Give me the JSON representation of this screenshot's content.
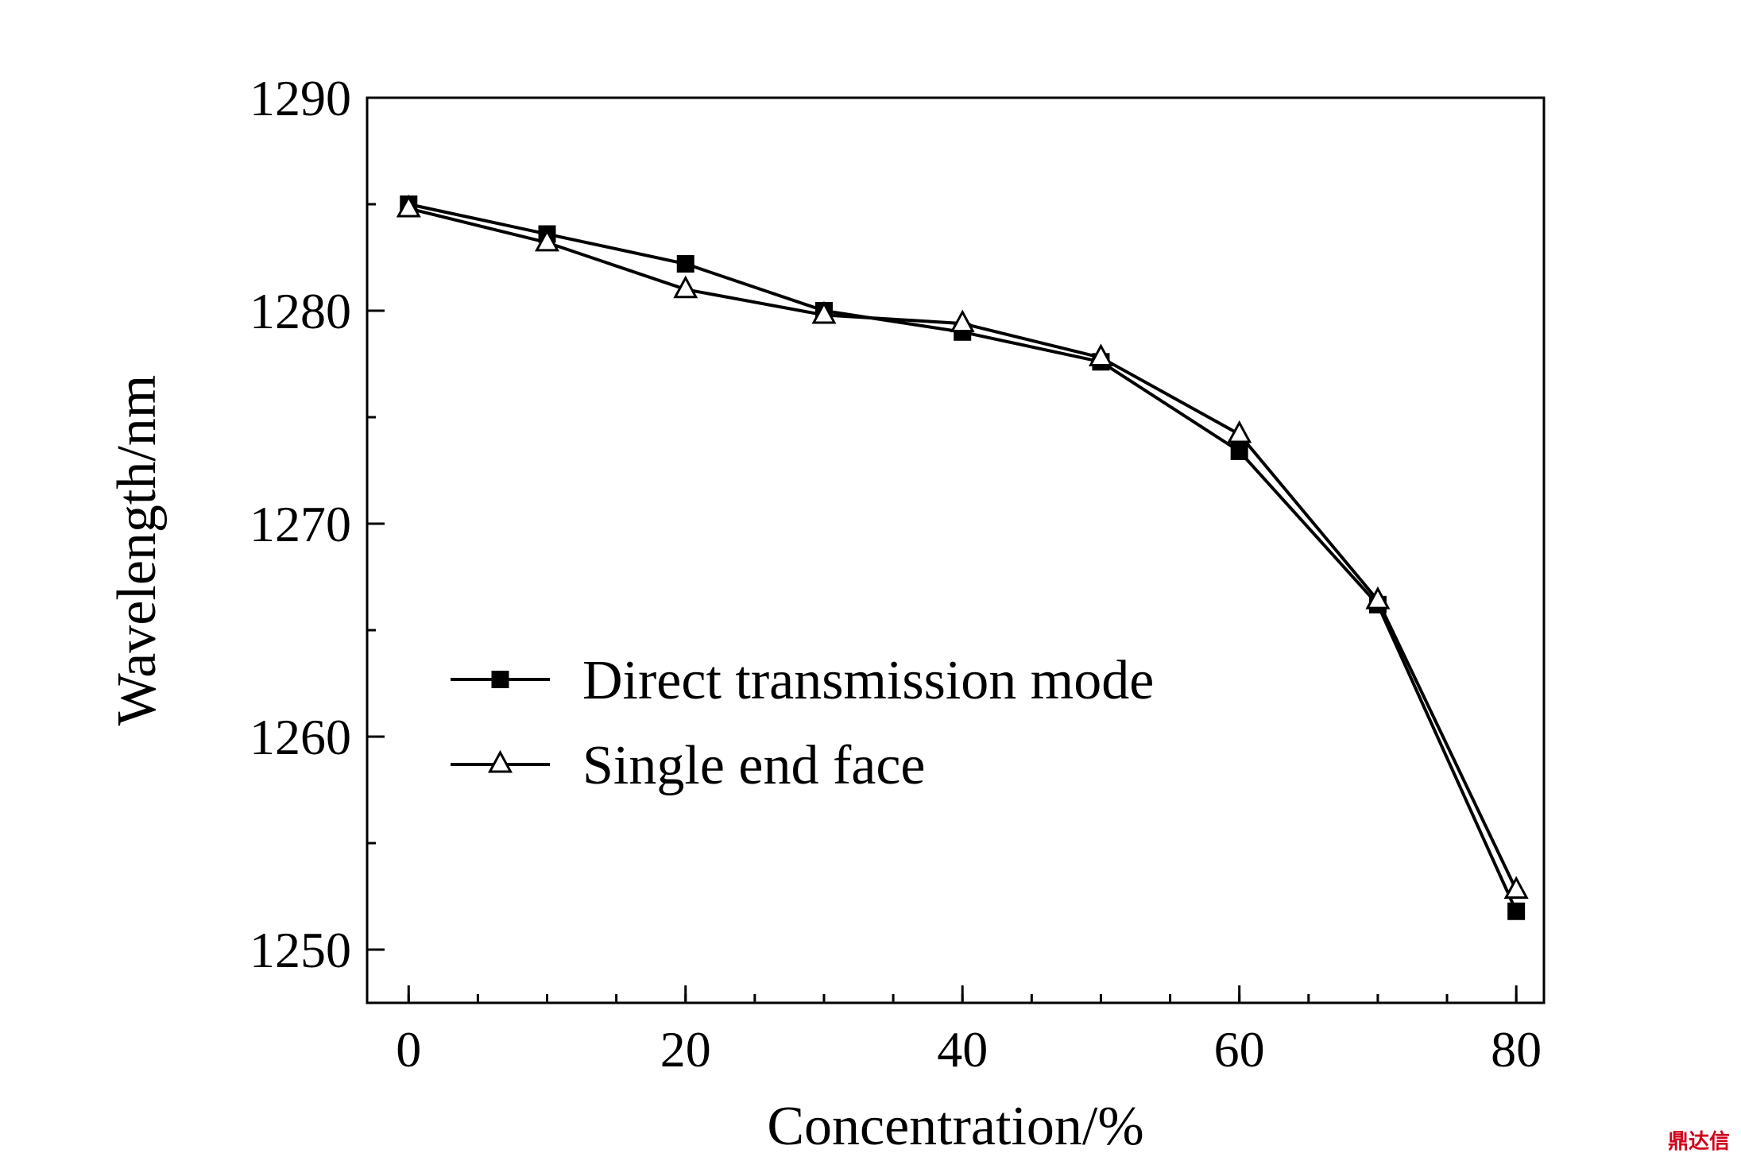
{
  "chart_data": {
    "type": "line",
    "title": "",
    "xlabel": "Concentration/%",
    "ylabel": "Wavelength/nm",
    "xlim": [
      -3,
      82
    ],
    "ylim": [
      1247.5,
      1290
    ],
    "x_ticks": [
      0,
      20,
      40,
      60,
      80
    ],
    "y_ticks": [
      1250,
      1260,
      1270,
      1280,
      1290
    ],
    "x_minor_step": 5,
    "y_minor_step": 5,
    "grid": false,
    "legend_position": "center-left",
    "series": [
      {
        "name": "Direct transmission mode",
        "marker": "filled-square",
        "color": "#000000",
        "x": [
          0,
          10,
          20,
          30,
          40,
          50,
          60,
          70,
          80
        ],
        "y": [
          1285.0,
          1283.6,
          1282.2,
          1280.0,
          1279.0,
          1277.6,
          1273.4,
          1266.2,
          1251.8
        ]
      },
      {
        "name": "Single end face",
        "marker": "open-triangle",
        "color": "#000000",
        "x": [
          0,
          10,
          20,
          30,
          40,
          50,
          60,
          70,
          80
        ],
        "y": [
          1284.8,
          1283.2,
          1281.0,
          1279.8,
          1279.4,
          1277.8,
          1274.2,
          1266.4,
          1252.8
        ]
      }
    ]
  },
  "watermark": {
    "text": "鼎达信"
  }
}
